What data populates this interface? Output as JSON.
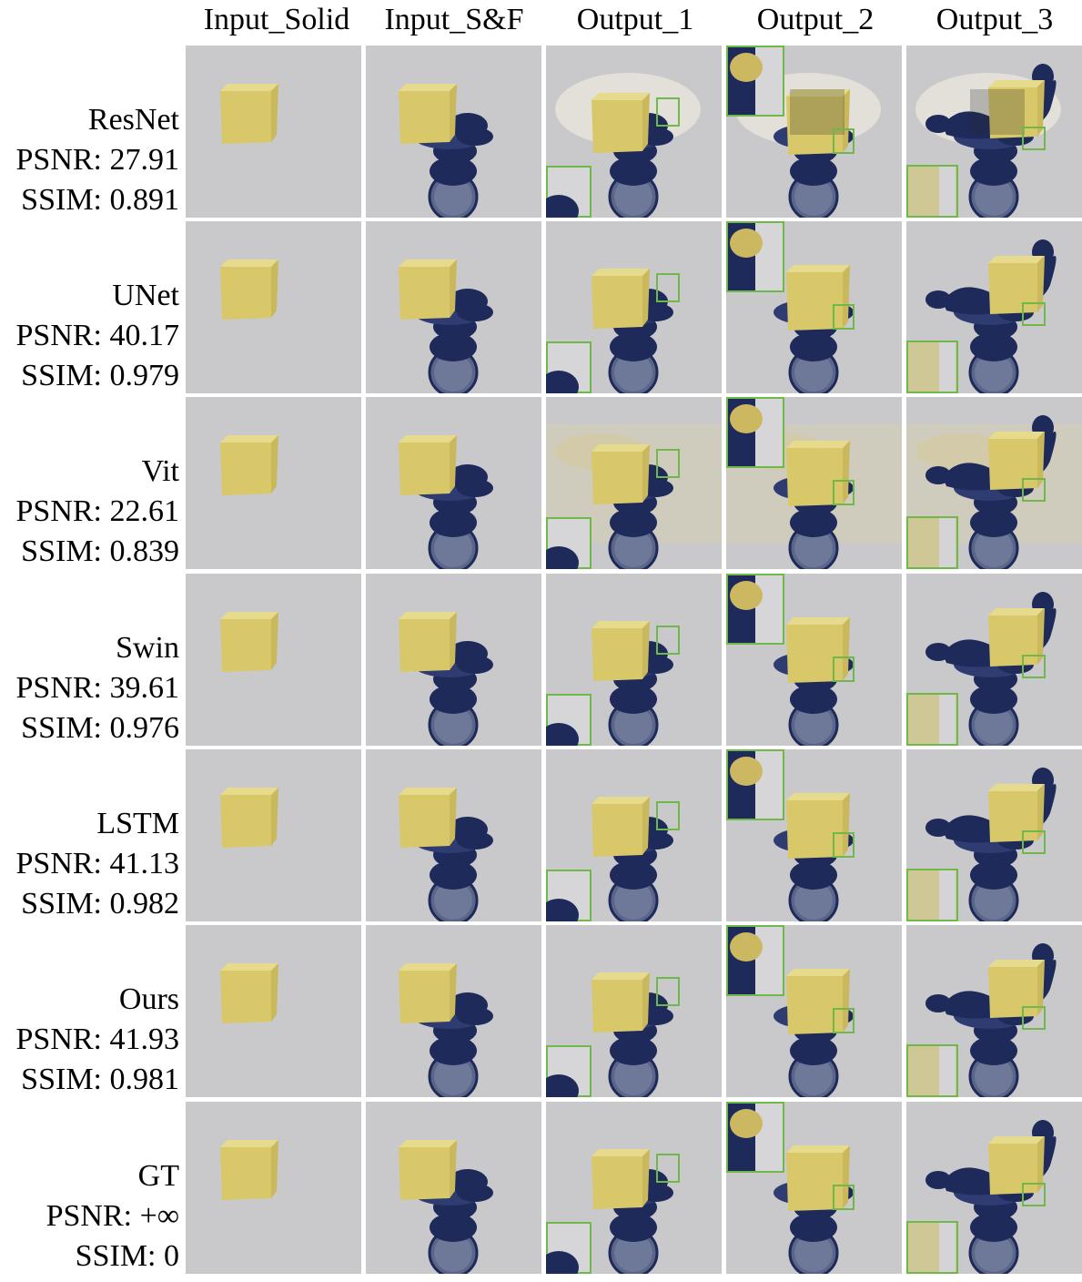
{
  "columns": [
    "Input_Solid",
    "Input_S&F",
    "Output_1",
    "Output_2",
    "Output_3"
  ],
  "rows": [
    {
      "method": "ResNet",
      "psnr": "PSNR: 27.91",
      "ssim": "SSIM: 0.891",
      "quality": "artifacts-heavy"
    },
    {
      "method": "UNet",
      "psnr": "PSNR: 40.17",
      "ssim": "SSIM: 0.979",
      "quality": "clean"
    },
    {
      "method": "Vit",
      "psnr": "PSNR: 22.61",
      "ssim": "SSIM: 0.839",
      "quality": "noisy-yellow"
    },
    {
      "method": "Swin",
      "psnr": "PSNR: 39.61",
      "ssim": "SSIM: 0.976",
      "quality": "clean"
    },
    {
      "method": "LSTM",
      "psnr": "PSNR: 41.13",
      "ssim": "SSIM: 0.982",
      "quality": "clean"
    },
    {
      "method": "Ours",
      "psnr": "PSNR: 41.93",
      "ssim": "SSIM: 0.981",
      "quality": "clean"
    },
    {
      "method": "GT",
      "psnr": "PSNR: +∞",
      "ssim": "SSIM: 0",
      "quality": "clean"
    }
  ],
  "colors": {
    "background_tile": "#c9c9cb",
    "cube_face": "#d8c86a",
    "cube_top": "#e6da8c",
    "fluid": "#1e2a5a",
    "fluid_light": "#2e3c72",
    "zoom_box": "#6fb84a"
  }
}
